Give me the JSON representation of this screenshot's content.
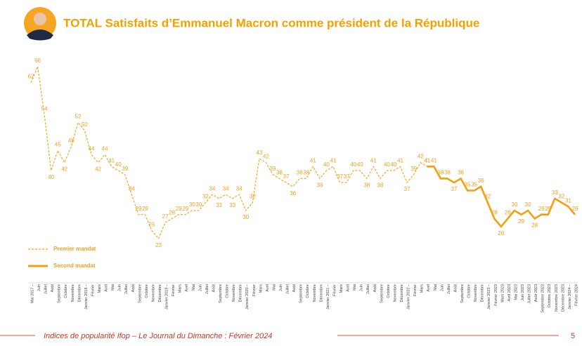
{
  "chart_data": {
    "type": "line",
    "title": "TOTAL Satisfaits d’Emmanuel Macron comme président de la République",
    "categories": [
      "Mai 2017 –",
      "Juin",
      "Juillet",
      "Août",
      "Septembre",
      "Octobre",
      "Novembre",
      "Décembre",
      "Janvier 2018 –",
      "Février",
      "Mars",
      "Avril",
      "Mai",
      "Juin",
      "Juillet",
      "Août",
      "Septembre",
      "Octobre",
      "Novembre",
      "Décembre",
      "Janvier 2019 –",
      "Février",
      "Mars",
      "Avril",
      "Mai",
      "Juin",
      "Juillet",
      "Août",
      "Septembre",
      "Octobre",
      "Novembre",
      "Décembre",
      "Janvier 2020 –",
      "Février",
      "Mars",
      "Avril",
      "Mai",
      "Juin",
      "Juillet",
      "Août",
      "Septembre",
      "Octobre",
      "Novembre",
      "Décembre",
      "Janvier 2021 –",
      "Février",
      "Mars",
      "Avril",
      "Mai",
      "Juin",
      "Juillet",
      "Août",
      "Septembre",
      "Octobre",
      "Novembre",
      "Décembre",
      "Janvier 2022 –",
      "Février",
      "Mars",
      "Avril",
      "Mai",
      "Juin",
      "Juillet",
      "Août",
      "Septembre",
      "Octobre",
      "Novembre",
      "Décembre",
      "Janvier 2023 –",
      "Février 2023",
      "Mars 2023",
      "Avril 2023",
      "Mai 2023",
      "Juin 2023",
      "Juillet 2023",
      "Août 2023",
      "Septembre 2023",
      "Octobre 2023",
      "Novembre 2023",
      "Décembre 2023",
      "Janvier 2024 –",
      "Février 2024"
    ],
    "series": [
      {
        "name": "Premier mandat",
        "color": "#f5a623",
        "dashed": true,
        "values": [
          62,
          66,
          54,
          40,
          45,
          42,
          46,
          52,
          50,
          44,
          42,
          44,
          41,
          40,
          39,
          34,
          29,
          29,
          25,
          23,
          27,
          28,
          29,
          29,
          30,
          30,
          32,
          34,
          33,
          34,
          33,
          34,
          30,
          32,
          43,
          42,
          39,
          38,
          37,
          36,
          38,
          38,
          41,
          38,
          40,
          41,
          37,
          37,
          40,
          40,
          38,
          41,
          38,
          40,
          40,
          41,
          37,
          39,
          42,
          41,
          null,
          null,
          null,
          null,
          null,
          null,
          null,
          null,
          null,
          null,
          null,
          null,
          null,
          null,
          null,
          null,
          null,
          null,
          null,
          null,
          null,
          null
        ]
      },
      {
        "name": "Second mandat",
        "color": "#f0a010",
        "dashed": false,
        "values": [
          null,
          null,
          null,
          null,
          null,
          null,
          null,
          null,
          null,
          null,
          null,
          null,
          null,
          null,
          null,
          null,
          null,
          null,
          null,
          null,
          null,
          null,
          null,
          null,
          null,
          null,
          null,
          null,
          null,
          null,
          null,
          null,
          null,
          null,
          null,
          null,
          null,
          null,
          null,
          null,
          null,
          null,
          null,
          null,
          null,
          null,
          null,
          null,
          null,
          null,
          null,
          null,
          null,
          null,
          null,
          null,
          null,
          null,
          null,
          41,
          41,
          38,
          38,
          37,
          38,
          35,
          35,
          36,
          32,
          28,
          26,
          28,
          30,
          29,
          30,
          28,
          29,
          29,
          33,
          32,
          31,
          29
        ]
      }
    ],
    "ylim": [
      20,
      70
    ],
    "footer": "Indices de popularité Ifop – Le Journal du Dimanche : Février 2024",
    "page_number": "5"
  }
}
